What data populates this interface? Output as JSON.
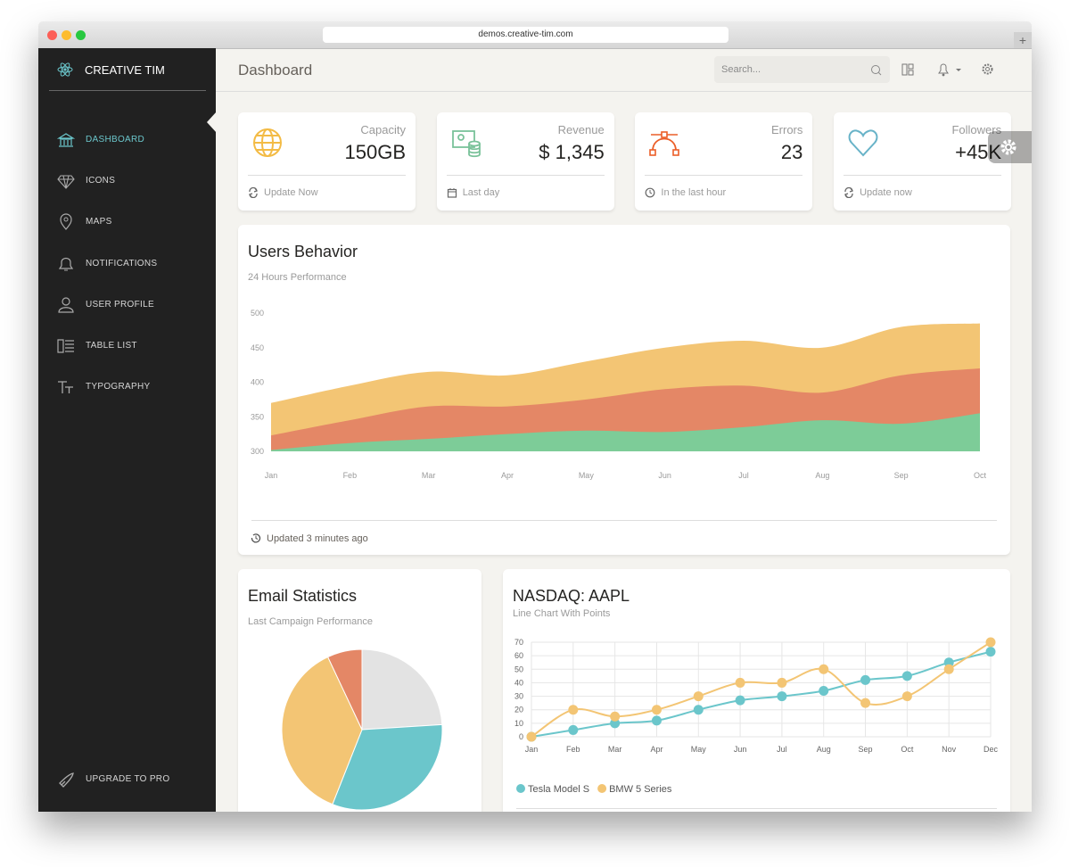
{
  "browser": {
    "url": "demos.creative-tim.com"
  },
  "sidebar": {
    "brand": "CREATIVE TIM",
    "items": [
      "DASHBOARD",
      "ICONS",
      "MAPS",
      "NOTIFICATIONS",
      "USER PROFILE",
      "TABLE LIST",
      "TYPOGRAPHY"
    ],
    "upgrade": "UPGRADE TO PRO"
  },
  "navbar": {
    "title": "Dashboard",
    "search_placeholder": "Search..."
  },
  "stats": [
    {
      "label": "Capacity",
      "value": "150GB",
      "footer": "Update Now"
    },
    {
      "label": "Revenue",
      "value": "$ 1,345",
      "footer": "Last day"
    },
    {
      "label": "Errors",
      "value": "23",
      "footer": "In the last hour"
    },
    {
      "label": "Followers",
      "value": "+45K",
      "footer": "Update now"
    }
  ],
  "chart_data": [
    {
      "type": "area",
      "title": "Users Behavior",
      "subtitle": "24 Hours Performance",
      "footer": "Updated 3 minutes ago",
      "categories": [
        "Jan",
        "Feb",
        "Mar",
        "Apr",
        "May",
        "Jun",
        "Jul",
        "Aug",
        "Sep",
        "Oct"
      ],
      "series": [
        {
          "color": "#f3c574",
          "values": [
            370,
            395,
            415,
            410,
            430,
            450,
            460,
            450,
            480,
            485
          ]
        },
        {
          "color": "#e48766",
          "values": [
            323,
            345,
            365,
            365,
            375,
            390,
            395,
            385,
            410,
            420
          ]
        },
        {
          "color": "#7dcc98",
          "values": [
            302,
            312,
            318,
            325,
            330,
            328,
            335,
            345,
            340,
            355
          ]
        }
      ],
      "ylim": [
        300,
        500
      ],
      "yticks": [
        300,
        350,
        400,
        450,
        500
      ]
    },
    {
      "type": "pie",
      "title": "Email Statistics",
      "subtitle": "Last Campaign Performance",
      "values": [
        24,
        32,
        37,
        7
      ],
      "colors": [
        "#e3e3e3",
        "#6bc6cb",
        "#f3c574",
        "#e48766"
      ]
    },
    {
      "type": "line",
      "title": "NASDAQ: AAPL",
      "subtitle": "Line Chart With Points",
      "categories": [
        "Jan",
        "Feb",
        "Mar",
        "Apr",
        "May",
        "Jun",
        "Jul",
        "Aug",
        "Sep",
        "Oct",
        "Nov",
        "Dec"
      ],
      "series": [
        {
          "name": "Tesla Model S",
          "color": "#6bc6cb",
          "values": [
            0,
            5,
            10,
            12,
            20,
            27,
            30,
            34,
            42,
            45,
            55,
            63
          ]
        },
        {
          "name": "BMW 5 Series",
          "color": "#f3c574",
          "values": [
            0,
            20,
            15,
            20,
            30,
            40,
            40,
            50,
            25,
            30,
            50,
            70
          ]
        }
      ],
      "ylim": [
        0,
        70
      ],
      "yticks": [
        0,
        10,
        20,
        30,
        40,
        50,
        60,
        70
      ],
      "grid": true,
      "legend": "bottom-left"
    }
  ]
}
